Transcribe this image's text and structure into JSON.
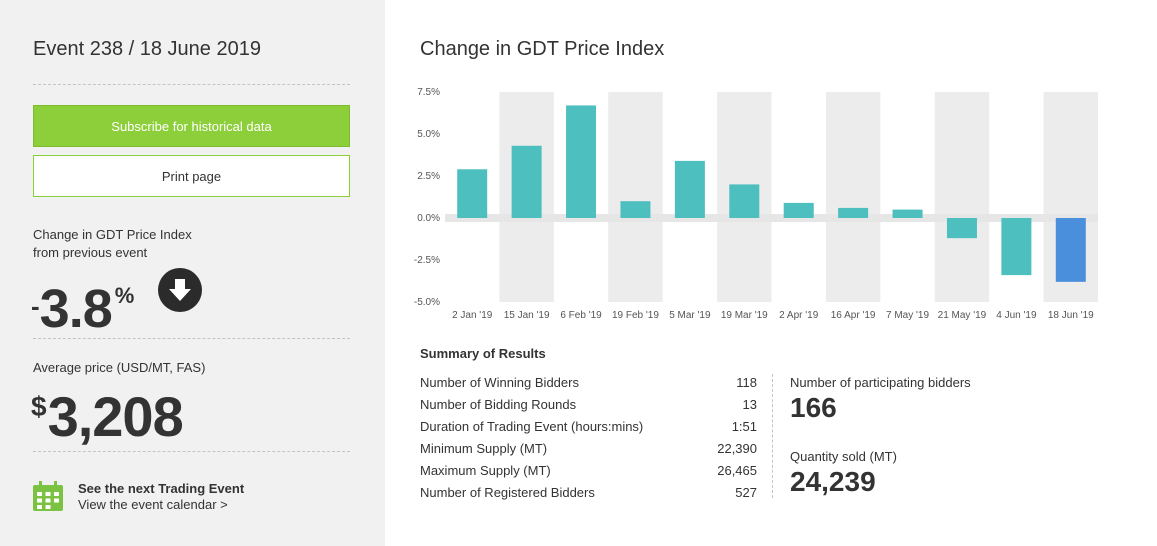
{
  "event": {
    "title": "Event 238 / 18 June 2019"
  },
  "buttons": {
    "subscribe": "Subscribe for historical data",
    "print": "Print page"
  },
  "change": {
    "label_line1": "Change in GDT Price Index",
    "label_line2": "from previous event",
    "sign": "-",
    "value": "3.8",
    "unit": "%",
    "direction_icon": "arrow-down-circle-icon"
  },
  "price": {
    "label": "Average price (USD/MT, FAS)",
    "currency": "$",
    "value": "3,208"
  },
  "next_event": {
    "title": "See the next Trading Event",
    "link": "View the event calendar >",
    "icon": "calendar-icon"
  },
  "chart_data": {
    "type": "bar",
    "title": "Change in GDT Price Index",
    "categories": [
      "2 Jan '19",
      "15 Jan '19",
      "6 Feb '19",
      "19 Feb '19",
      "5 Mar '19",
      "19 Mar '19",
      "2 Apr '19",
      "16 Apr '19",
      "7 May '19",
      "21 May '19",
      "4 Jun '19",
      "18 Jun '19"
    ],
    "values": [
      2.9,
      4.3,
      6.7,
      1.0,
      3.4,
      2.0,
      0.9,
      0.6,
      0.5,
      -1.2,
      -3.4,
      -3.8
    ],
    "ylim": [
      -5.0,
      7.5
    ],
    "yticks": [
      "7.5%",
      "5.0%",
      "2.5%",
      "0.0%",
      "-2.5%",
      "-5.0%"
    ],
    "ytick_values": [
      7.5,
      5.0,
      2.5,
      0.0,
      -2.5,
      -5.0
    ],
    "colors": {
      "bar": "#4dbfbf",
      "highlight": "#4a8fdb",
      "band": "#ececec"
    }
  },
  "summary": {
    "title": "Summary of Results",
    "rows": [
      {
        "label": "Number of Winning Bidders",
        "value": "118"
      },
      {
        "label": "Number of Bidding Rounds",
        "value": "13"
      },
      {
        "label": "Duration of Trading Event (hours:mins)",
        "value": "1:51"
      },
      {
        "label": "Minimum Supply (MT)",
        "value": "22,390"
      },
      {
        "label": "Maximum Supply (MT)",
        "value": "26,465"
      },
      {
        "label": "Number of Registered Bidders",
        "value": "527"
      }
    ],
    "participating_label": "Number of participating bidders",
    "participating_value": "166",
    "quantity_label": "Quantity sold (MT)",
    "quantity_value": "24,239"
  }
}
